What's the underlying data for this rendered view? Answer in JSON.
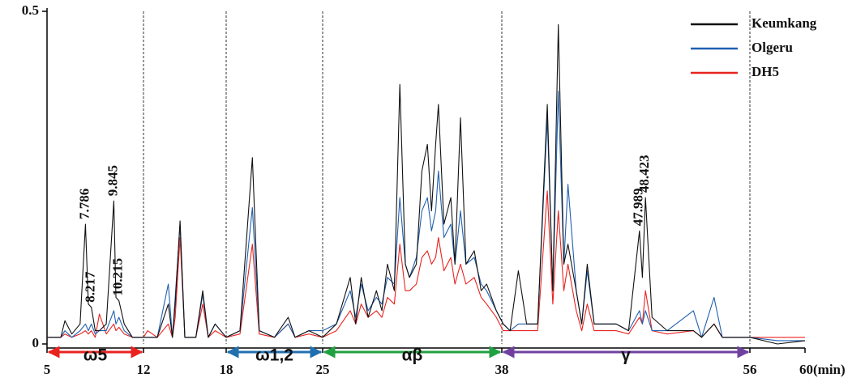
{
  "chart_data": {
    "type": "line",
    "x": [
      5,
      6,
      6.3,
      6.8,
      7.4,
      7.786,
      8.0,
      8.217,
      8.5,
      8.8,
      9.3,
      9.845,
      10.0,
      10.215,
      10.6,
      11.2,
      12,
      12.3,
      13,
      13.8,
      14.1,
      14.3,
      14.65,
      15.0,
      15.8,
      16.3,
      16.7,
      17.2,
      18,
      19,
      19.9,
      20.4,
      21.5,
      22.5,
      23,
      24,
      25,
      26,
      27,
      27.4,
      27.8,
      28.3,
      28.9,
      29.3,
      29.7,
      30.2,
      30.6,
      31.0,
      31.3,
      31.8,
      32.2,
      32.6,
      32.9,
      33.2,
      33.4,
      33.8,
      34.3,
      34.6,
      35.0,
      35.4,
      36.0,
      36.5,
      36.9,
      37.6,
      38.1,
      38.6,
      39.2,
      39.8,
      40.6,
      41.3,
      41.7,
      42.1,
      42.5,
      42.8,
      43.4,
      43.8,
      44.2,
      44.7,
      46.3,
      47.2,
      47.989,
      48.2,
      48.423,
      48.9,
      50,
      51.9,
      52.5,
      53.4,
      54,
      56,
      58,
      60
    ],
    "series": [
      {
        "name": "Keumkang",
        "color": "#111111",
        "values": [
          0.01,
          0.01,
          0.035,
          0.015,
          0.03,
          0.18,
          0.06,
          0.055,
          0.02,
          0.02,
          0.03,
          0.215,
          0.07,
          0.065,
          0.03,
          0.01,
          0.01,
          0.01,
          0.01,
          0.06,
          0.01,
          0.06,
          0.185,
          0.01,
          0.01,
          0.08,
          0.01,
          0.03,
          0.01,
          0.02,
          0.28,
          0.02,
          0.01,
          0.04,
          0.01,
          0.02,
          0.01,
          0.03,
          0.1,
          0.03,
          0.1,
          0.04,
          0.08,
          0.05,
          0.12,
          0.08,
          0.39,
          0.12,
          0.1,
          0.12,
          0.26,
          0.3,
          0.2,
          0.3,
          0.36,
          0.18,
          0.22,
          0.12,
          0.34,
          0.12,
          0.14,
          0.08,
          0.09,
          0.05,
          0.03,
          0.02,
          0.11,
          0.03,
          0.03,
          0.36,
          0.08,
          0.48,
          0.12,
          0.15,
          0.08,
          0.03,
          0.12,
          0.03,
          0.03,
          0.02,
          0.17,
          0.1,
          0.22,
          0.04,
          0.02,
          0.02,
          0.01,
          0.03,
          0.01,
          0.01,
          0.0,
          0.005
        ]
      },
      {
        "name": "Olgeru",
        "color": "#2060b0",
        "values": [
          0.01,
          0.01,
          0.02,
          0.01,
          0.02,
          0.03,
          0.02,
          0.03,
          0.015,
          0.02,
          0.02,
          0.05,
          0.03,
          0.04,
          0.02,
          0.01,
          0.01,
          0.01,
          0.01,
          0.09,
          0.01,
          0.07,
          0.18,
          0.01,
          0.01,
          0.075,
          0.01,
          0.03,
          0.01,
          0.02,
          0.205,
          0.02,
          0.01,
          0.03,
          0.01,
          0.02,
          0.02,
          0.03,
          0.08,
          0.04,
          0.09,
          0.05,
          0.07,
          0.06,
          0.1,
          0.09,
          0.22,
          0.12,
          0.1,
          0.13,
          0.2,
          0.22,
          0.17,
          0.2,
          0.26,
          0.16,
          0.18,
          0.12,
          0.2,
          0.12,
          0.13,
          0.09,
          0.08,
          0.05,
          0.03,
          0.02,
          0.03,
          0.03,
          0.03,
          0.34,
          0.08,
          0.38,
          0.12,
          0.24,
          0.08,
          0.03,
          0.11,
          0.03,
          0.03,
          0.02,
          0.05,
          0.03,
          0.05,
          0.02,
          0.02,
          0.05,
          0.01,
          0.07,
          0.01,
          0.01,
          0.005,
          0.005
        ]
      },
      {
        "name": "DH5",
        "color": "#e8231f",
        "values": [
          0.01,
          0.01,
          0.015,
          0.01,
          0.015,
          0.02,
          0.015,
          0.02,
          0.01,
          0.045,
          0.015,
          0.03,
          0.02,
          0.025,
          0.015,
          0.01,
          0.01,
          0.02,
          0.01,
          0.03,
          0.01,
          0.04,
          0.16,
          0.01,
          0.01,
          0.06,
          0.01,
          0.02,
          0.01,
          0.015,
          0.15,
          0.015,
          0.01,
          0.03,
          0.01,
          0.015,
          0.01,
          0.02,
          0.05,
          0.03,
          0.06,
          0.04,
          0.05,
          0.04,
          0.07,
          0.06,
          0.15,
          0.08,
          0.08,
          0.09,
          0.13,
          0.14,
          0.12,
          0.13,
          0.16,
          0.11,
          0.13,
          0.09,
          0.12,
          0.09,
          0.1,
          0.07,
          0.06,
          0.04,
          0.02,
          0.02,
          0.02,
          0.02,
          0.02,
          0.23,
          0.06,
          0.2,
          0.08,
          0.12,
          0.05,
          0.02,
          0.06,
          0.02,
          0.02,
          0.015,
          0.04,
          0.03,
          0.08,
          0.02,
          0.015,
          0.02,
          0.01,
          0.03,
          0.01,
          0.01,
          0.01,
          0.01
        ]
      }
    ],
    "xlim": [
      5,
      60
    ],
    "ylim": [
      0,
      0.5
    ],
    "xticks": [
      5,
      12,
      18,
      25,
      38,
      56,
      {
        "value": 60,
        "label": "60(min)"
      }
    ],
    "yticks": [
      0,
      0.5
    ],
    "legend": "upper right",
    "regions": [
      {
        "label": "ω5",
        "start": 5,
        "end": 12,
        "color": "#e8231f"
      },
      {
        "label": "ω1,2",
        "start": 18,
        "end": 25,
        "color": "#2070b0"
      },
      {
        "label": "αβ",
        "start": 25,
        "end": 38,
        "color": "#20a040"
      },
      {
        "label": "γ",
        "start": 38,
        "end": 56,
        "color": "#7040a0"
      }
    ],
    "peak_labels": [
      7.786,
      8.217,
      9.845,
      10.215,
      47.989,
      48.423
    ]
  }
}
